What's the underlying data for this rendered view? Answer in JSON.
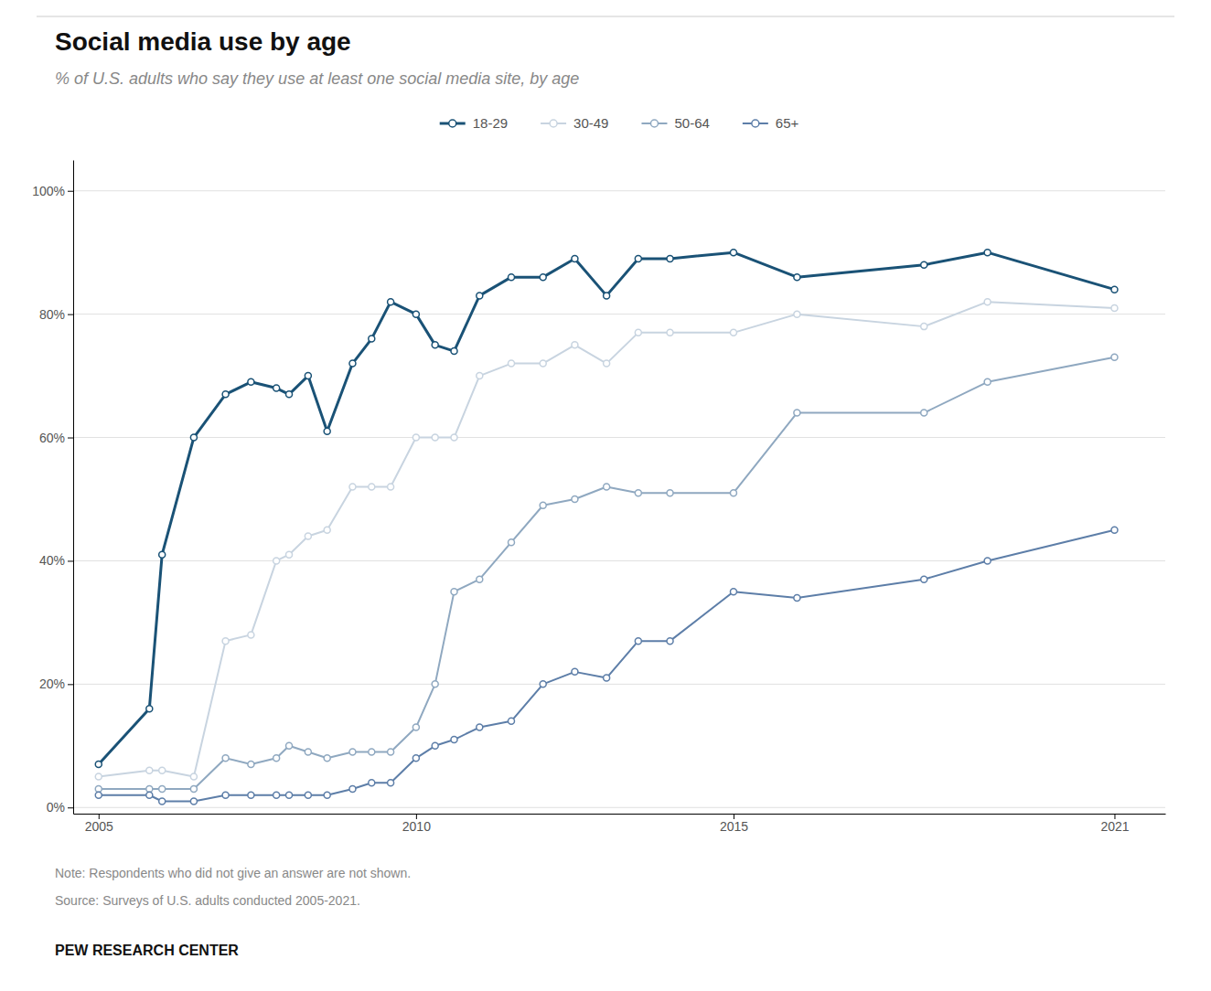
{
  "chart_data": {
    "type": "line",
    "title": "Social media use by age",
    "subtitle": "% of U.S. adults who say they use at least one social media site, by age",
    "annotations": [
      "Note: Respondents who did not give an answer are not shown.",
      "Source: Surveys of U.S. adults conducted 2005-2021.",
      "PEW RESEARCH CENTER"
    ],
    "x": [
      2005,
      2005.8,
      2006,
      2006.5,
      2007,
      2007.4,
      2007.8,
      2008,
      2008.3,
      2008.6,
      2009,
      2009.3,
      2009.6,
      2010,
      2010.3,
      2010.6,
      2011,
      2011.5,
      2012,
      2012.5,
      2013,
      2013.5,
      2014,
      2015,
      2016,
      2018,
      2019,
      2021
    ],
    "series": [
      {
        "name": "18-29",
        "color": "#1a5276",
        "marker": "circle",
        "values": [
          7,
          16,
          41,
          60,
          67,
          69,
          68,
          67,
          70,
          61,
          72,
          76,
          82,
          80,
          75,
          74,
          83,
          86,
          86,
          89,
          83,
          89,
          89,
          90,
          86,
          88,
          90,
          84
        ]
      },
      {
        "name": "30-49",
        "color": "#c8d4e0",
        "marker": "circle",
        "values": [
          5,
          6,
          6,
          5,
          27,
          28,
          40,
          41,
          44,
          45,
          52,
          52,
          52,
          60,
          60,
          60,
          70,
          72,
          72,
          75,
          72,
          77,
          77,
          77,
          80,
          78,
          82,
          81
        ]
      },
      {
        "name": "50-64",
        "color": "#8fa8c0",
        "marker": "circle",
        "values": [
          3,
          3,
          3,
          3,
          8,
          7,
          8,
          10,
          9,
          8,
          9,
          9,
          9,
          13,
          20,
          35,
          37,
          43,
          49,
          50,
          52,
          51,
          51,
          51,
          64,
          64,
          69,
          73
        ]
      },
      {
        "name": "65+",
        "color": "#5d7ea8",
        "marker": "circle",
        "values": [
          2,
          2,
          1,
          1,
          2,
          2,
          2,
          2,
          2,
          2,
          3,
          4,
          4,
          8,
          10,
          11,
          13,
          14,
          20,
          22,
          21,
          27,
          27,
          35,
          34,
          37,
          40,
          45
        ]
      }
    ],
    "xlim": [
      2004.6,
      2021.8
    ],
    "ylim": [
      -1,
      105
    ],
    "xticks": [
      2005,
      2010,
      2015,
      2021
    ],
    "yticks": [
      {
        "value": 0,
        "label": "0%"
      },
      {
        "value": 20,
        "label": "20%"
      },
      {
        "value": 40,
        "label": "40%"
      },
      {
        "value": 60,
        "label": "60%"
      },
      {
        "value": 80,
        "label": "80%"
      },
      {
        "value": 100,
        "label": "100%"
      }
    ],
    "grid": true,
    "legend": "top"
  }
}
